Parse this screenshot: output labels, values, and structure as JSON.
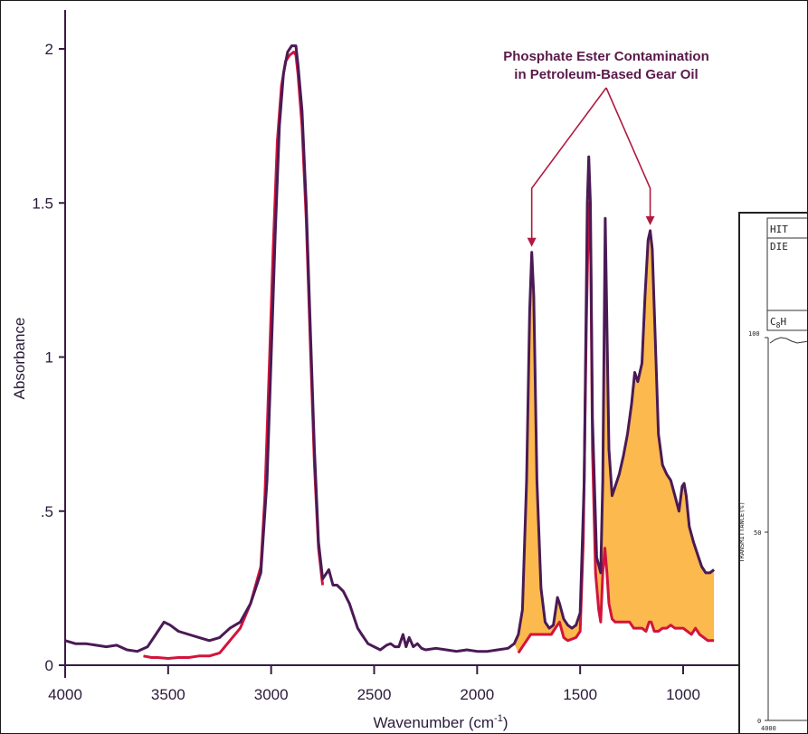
{
  "chart_data": {
    "type": "line",
    "ylabel": "Absorbance",
    "xlabel": "Wavenumber (cm",
    "xlabel_sup": "-1",
    "xlabel_end": ")",
    "xlim": [
      4000,
      850
    ],
    "ylim": [
      0,
      2.05
    ],
    "x_ticks": [
      {
        "value": 4000,
        "label": "4000"
      },
      {
        "value": 3500,
        "label": "3500"
      },
      {
        "value": 3000,
        "label": "3000"
      },
      {
        "value": 2500,
        "label": "2500"
      },
      {
        "value": 2000,
        "label": "2000"
      },
      {
        "value": 1500,
        "label": "1500"
      },
      {
        "value": 1000,
        "label": "1000"
      }
    ],
    "y_ticks": [
      {
        "value": 0,
        "label": "0"
      },
      {
        "value": 0.5,
        "label": ".5"
      },
      {
        "value": 1,
        "label": "1"
      },
      {
        "value": 1.5,
        "label": "1.5"
      },
      {
        "value": 2,
        "label": "2"
      }
    ],
    "annotation": {
      "line1": "Phosphate Ester Contamination",
      "line2": "in Petroleum-Based Gear Oil",
      "targets": [
        1735,
        1160
      ]
    },
    "colors": {
      "contaminated": "#4a1a55",
      "reference": "#d2143c",
      "fill": "#fbb94e",
      "arrow": "#b01a40"
    },
    "series": [
      {
        "key": "contaminated",
        "points": [
          [
            4000,
            0.08
          ],
          [
            3950,
            0.07
          ],
          [
            3900,
            0.07
          ],
          [
            3850,
            0.065
          ],
          [
            3800,
            0.06
          ],
          [
            3750,
            0.065
          ],
          [
            3700,
            0.05
          ],
          [
            3650,
            0.045
          ],
          [
            3600,
            0.06
          ],
          [
            3560,
            0.1
          ],
          [
            3520,
            0.14
          ],
          [
            3490,
            0.13
          ],
          [
            3450,
            0.11
          ],
          [
            3400,
            0.1
          ],
          [
            3350,
            0.09
          ],
          [
            3300,
            0.08
          ],
          [
            3250,
            0.09
          ],
          [
            3200,
            0.12
          ],
          [
            3150,
            0.14
          ],
          [
            3100,
            0.2
          ],
          [
            3050,
            0.3
          ],
          [
            3020,
            0.6
          ],
          [
            3000,
            1.0
          ],
          [
            2980,
            1.4
          ],
          [
            2960,
            1.75
          ],
          [
            2940,
            1.92
          ],
          [
            2920,
            1.99
          ],
          [
            2900,
            2.01
          ],
          [
            2880,
            2.01
          ],
          [
            2870,
            1.95
          ],
          [
            2850,
            1.8
          ],
          [
            2830,
            1.5
          ],
          [
            2810,
            1.1
          ],
          [
            2790,
            0.7
          ],
          [
            2770,
            0.4
          ],
          [
            2750,
            0.28
          ],
          [
            2730,
            0.3
          ],
          [
            2720,
            0.31
          ],
          [
            2700,
            0.26
          ],
          [
            2680,
            0.26
          ],
          [
            2650,
            0.24
          ],
          [
            2620,
            0.2
          ],
          [
            2600,
            0.16
          ],
          [
            2580,
            0.12
          ],
          [
            2560,
            0.1
          ],
          [
            2530,
            0.07
          ],
          [
            2500,
            0.06
          ],
          [
            2470,
            0.05
          ],
          [
            2440,
            0.065
          ],
          [
            2420,
            0.07
          ],
          [
            2400,
            0.06
          ],
          [
            2380,
            0.06
          ],
          [
            2360,
            0.1
          ],
          [
            2345,
            0.06
          ],
          [
            2330,
            0.09
          ],
          [
            2310,
            0.06
          ],
          [
            2290,
            0.07
          ],
          [
            2270,
            0.055
          ],
          [
            2250,
            0.05
          ],
          [
            2200,
            0.055
          ],
          [
            2150,
            0.05
          ],
          [
            2100,
            0.045
          ],
          [
            2050,
            0.05
          ],
          [
            2000,
            0.045
          ],
          [
            1950,
            0.045
          ],
          [
            1900,
            0.05
          ],
          [
            1850,
            0.055
          ],
          [
            1820,
            0.07
          ],
          [
            1800,
            0.1
          ],
          [
            1780,
            0.18
          ],
          [
            1760,
            0.6
          ],
          [
            1745,
            1.15
          ],
          [
            1735,
            1.34
          ],
          [
            1725,
            1.2
          ],
          [
            1710,
            0.6
          ],
          [
            1690,
            0.25
          ],
          [
            1670,
            0.14
          ],
          [
            1650,
            0.12
          ],
          [
            1630,
            0.13
          ],
          [
            1610,
            0.22
          ],
          [
            1600,
            0.2
          ],
          [
            1580,
            0.15
          ],
          [
            1560,
            0.13
          ],
          [
            1540,
            0.12
          ],
          [
            1520,
            0.13
          ],
          [
            1500,
            0.17
          ],
          [
            1480,
            0.6
          ],
          [
            1465,
            1.5
          ],
          [
            1458,
            1.65
          ],
          [
            1450,
            1.5
          ],
          [
            1440,
            0.8
          ],
          [
            1420,
            0.35
          ],
          [
            1400,
            0.3
          ],
          [
            1390,
            0.6
          ],
          [
            1378,
            1.45
          ],
          [
            1370,
            1.1
          ],
          [
            1360,
            0.7
          ],
          [
            1345,
            0.55
          ],
          [
            1330,
            0.58
          ],
          [
            1310,
            0.62
          ],
          [
            1290,
            0.68
          ],
          [
            1270,
            0.75
          ],
          [
            1250,
            0.85
          ],
          [
            1235,
            0.95
          ],
          [
            1220,
            0.92
          ],
          [
            1200,
            0.98
          ],
          [
            1185,
            1.2
          ],
          [
            1170,
            1.38
          ],
          [
            1160,
            1.41
          ],
          [
            1150,
            1.35
          ],
          [
            1135,
            1.05
          ],
          [
            1120,
            0.75
          ],
          [
            1100,
            0.65
          ],
          [
            1080,
            0.62
          ],
          [
            1060,
            0.6
          ],
          [
            1040,
            0.55
          ],
          [
            1020,
            0.5
          ],
          [
            1005,
            0.58
          ],
          [
            995,
            0.59
          ],
          [
            985,
            0.55
          ],
          [
            970,
            0.45
          ],
          [
            950,
            0.4
          ],
          [
            930,
            0.36
          ],
          [
            910,
            0.32
          ],
          [
            890,
            0.3
          ],
          [
            870,
            0.3
          ],
          [
            850,
            0.31
          ]
        ]
      },
      {
        "key": "reference",
        "points": [
          [
            3620,
            0.03
          ],
          [
            3580,
            0.025
          ],
          [
            3550,
            0.025
          ],
          [
            3500,
            0.022
          ],
          [
            3450,
            0.025
          ],
          [
            3400,
            0.025
          ],
          [
            3350,
            0.03
          ],
          [
            3300,
            0.03
          ],
          [
            3250,
            0.04
          ],
          [
            3200,
            0.08
          ],
          [
            3150,
            0.12
          ],
          [
            3100,
            0.2
          ],
          [
            3050,
            0.32
          ],
          [
            3030,
            0.55
          ],
          [
            3010,
            0.95
          ],
          [
            2990,
            1.35
          ],
          [
            2970,
            1.7
          ],
          [
            2950,
            1.88
          ],
          [
            2930,
            1.96
          ],
          [
            2910,
            1.98
          ],
          [
            2890,
            1.99
          ],
          [
            2880,
            1.98
          ],
          [
            2870,
            1.92
          ],
          [
            2850,
            1.75
          ],
          [
            2830,
            1.45
          ],
          [
            2810,
            1.05
          ],
          [
            2790,
            0.65
          ],
          [
            2770,
            0.38
          ],
          [
            2750,
            0.26
          ],
          [
            1800,
            0.04
          ],
          [
            1780,
            0.06
          ],
          [
            1760,
            0.08
          ],
          [
            1740,
            0.1
          ],
          [
            1720,
            0.1
          ],
          [
            1700,
            0.1
          ],
          [
            1680,
            0.1
          ],
          [
            1660,
            0.1
          ],
          [
            1640,
            0.1
          ],
          [
            1620,
            0.12
          ],
          [
            1600,
            0.14
          ],
          [
            1580,
            0.09
          ],
          [
            1560,
            0.08
          ],
          [
            1540,
            0.085
          ],
          [
            1520,
            0.09
          ],
          [
            1500,
            0.11
          ],
          [
            1485,
            0.4
          ],
          [
            1470,
            1.1
          ],
          [
            1460,
            1.45
          ],
          [
            1455,
            1.5
          ],
          [
            1448,
            1.3
          ],
          [
            1440,
            0.7
          ],
          [
            1425,
            0.3
          ],
          [
            1410,
            0.18
          ],
          [
            1400,
            0.14
          ],
          [
            1390,
            0.3
          ],
          [
            1380,
            0.38
          ],
          [
            1370,
            0.3
          ],
          [
            1360,
            0.2
          ],
          [
            1345,
            0.15
          ],
          [
            1330,
            0.14
          ],
          [
            1300,
            0.14
          ],
          [
            1280,
            0.14
          ],
          [
            1260,
            0.14
          ],
          [
            1240,
            0.12
          ],
          [
            1220,
            0.12
          ],
          [
            1200,
            0.12
          ],
          [
            1180,
            0.11
          ],
          [
            1165,
            0.14
          ],
          [
            1155,
            0.14
          ],
          [
            1140,
            0.11
          ],
          [
            1120,
            0.11
          ],
          [
            1100,
            0.12
          ],
          [
            1080,
            0.12
          ],
          [
            1060,
            0.13
          ],
          [
            1040,
            0.12
          ],
          [
            1020,
            0.12
          ],
          [
            1000,
            0.12
          ],
          [
            980,
            0.11
          ],
          [
            960,
            0.1
          ],
          [
            940,
            0.12
          ],
          [
            920,
            0.1
          ],
          [
            900,
            0.09
          ],
          [
            880,
            0.08
          ],
          [
            850,
            0.08
          ]
        ]
      }
    ],
    "inset": {
      "row1": "HIT",
      "row2": "DIE",
      "formula": "C",
      "formula_sub": "8",
      "formula_end": "H",
      "y_top": "100",
      "y_mid": "50",
      "y_bottom": "0",
      "x_left": "4000",
      "ylabel": "TRANSMITTANCE(%)"
    }
  }
}
